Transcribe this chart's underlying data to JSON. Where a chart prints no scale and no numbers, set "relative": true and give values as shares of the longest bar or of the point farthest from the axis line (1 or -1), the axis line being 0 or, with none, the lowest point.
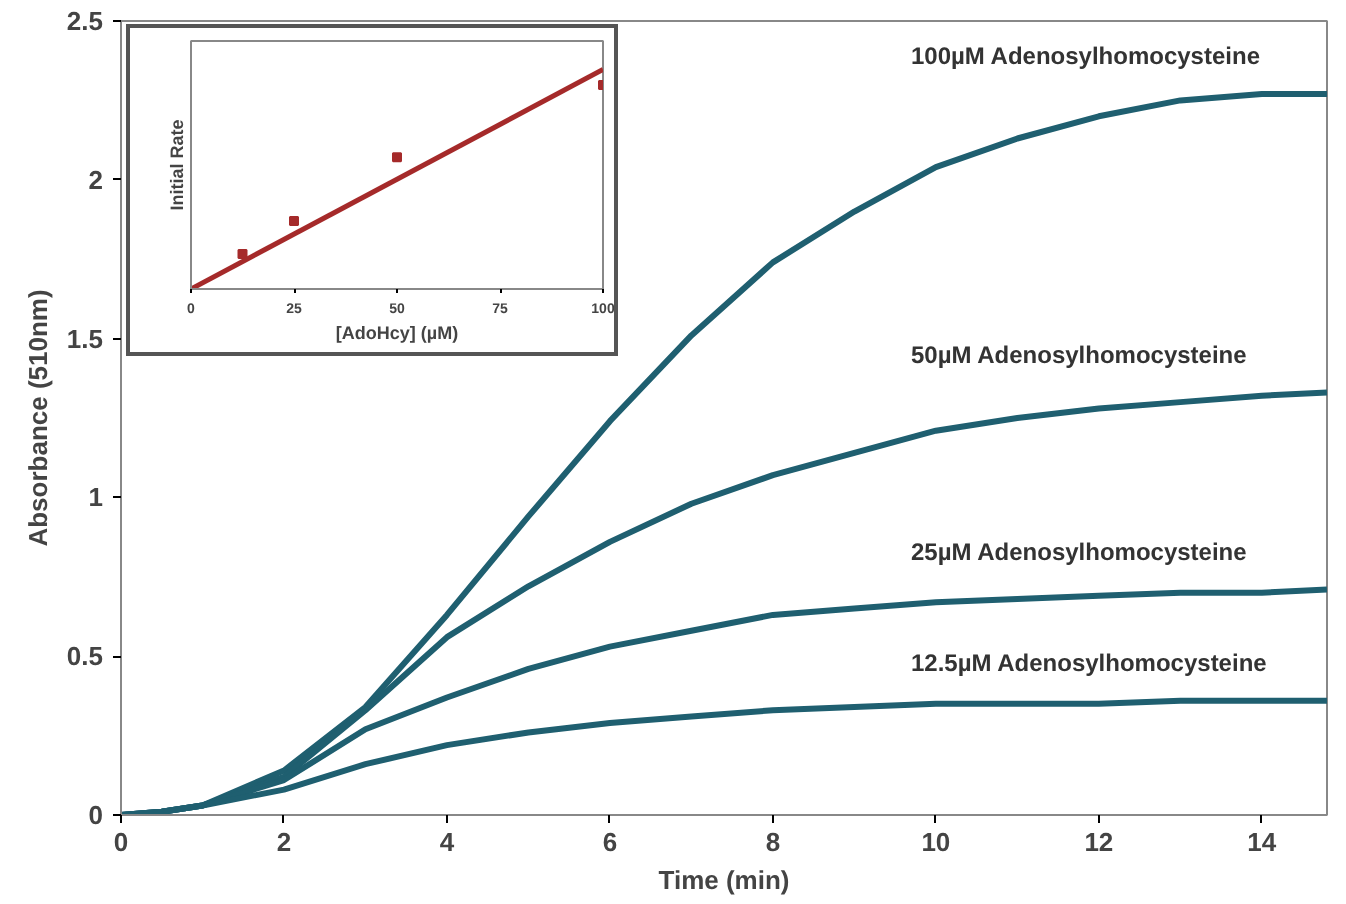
{
  "chart_data": [
    {
      "type": "line",
      "xlabel": "Time (min)",
      "ylabel": "Absorbance (510nm)",
      "xlim": [
        0,
        14.8
      ],
      "ylim": [
        0,
        2.5
      ],
      "xticks": [
        0,
        2,
        4,
        6,
        8,
        10,
        12,
        14
      ],
      "yticks": [
        0,
        {
          "value": 0.5,
          "label": "0.5"
        },
        1,
        {
          "value": 1.5,
          "label": "1.5"
        },
        2,
        {
          "value": 2.5,
          "label": "2.5"
        }
      ],
      "grid": false,
      "x": [
        0,
        0.5,
        1,
        2,
        3,
        4,
        5,
        6,
        7,
        8,
        9,
        10,
        11,
        12,
        13,
        14,
        14.8
      ],
      "series": [
        {
          "name": "100µM Adenosylhomocysteine",
          "color": "#1f5f70",
          "values": [
            0,
            0.01,
            0.03,
            0.14,
            0.34,
            0.63,
            0.94,
            1.24,
            1.51,
            1.74,
            1.9,
            2.04,
            2.13,
            2.2,
            2.25,
            2.27,
            2.27
          ]
        },
        {
          "name": "50µM Adenosylhomocysteine",
          "color": "#1f5f70",
          "values": [
            0,
            0.01,
            0.03,
            0.12,
            0.33,
            0.56,
            0.72,
            0.86,
            0.98,
            1.07,
            1.14,
            1.21,
            1.25,
            1.28,
            1.3,
            1.32,
            1.33
          ]
        },
        {
          "name": "25µM Adenosylhomocysteine",
          "color": "#1f5f70",
          "values": [
            0,
            0.01,
            0.03,
            0.11,
            0.27,
            0.37,
            0.46,
            0.53,
            0.58,
            0.63,
            0.65,
            0.67,
            0.68,
            0.69,
            0.7,
            0.7,
            0.71
          ]
        },
        {
          "name": "12.5µM Adenosylhomocysteine",
          "color": "#1f5f70",
          "values": [
            0,
            0.01,
            0.03,
            0.08,
            0.16,
            0.22,
            0.26,
            0.29,
            0.31,
            0.33,
            0.34,
            0.35,
            0.35,
            0.35,
            0.36,
            0.36,
            0.36
          ]
        }
      ]
    },
    {
      "type": "scatter",
      "relative": true,
      "xlabel": "[AdoHcy] (µM)",
      "ylabel": "Initial Rate",
      "xlim": [
        0,
        100
      ],
      "xticks": [
        0,
        25,
        50,
        75,
        100
      ],
      "tick_labels": "x",
      "grid": false,
      "series": [
        {
          "type": "scatter",
          "marker": "square",
          "color": "#a52a2a",
          "x": [
            12.5,
            25,
            50,
            100
          ],
          "values": [
            0.16,
            0.31,
            0.6,
            0.93
          ]
        },
        {
          "type": "line",
          "color": "#a52a2a",
          "x": [
            0,
            100
          ],
          "values": [
            0,
            1
          ]
        }
      ]
    }
  ]
}
